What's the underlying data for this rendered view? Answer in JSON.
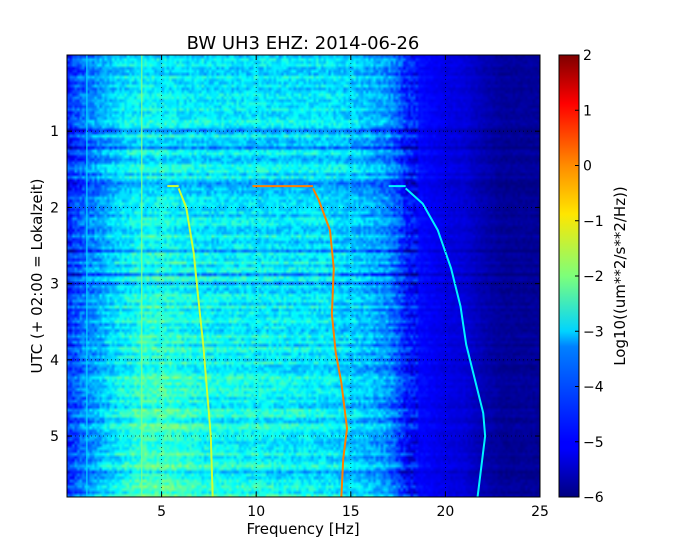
{
  "chart_data": {
    "type": "heatmap",
    "title": "BW UH3 EHZ: 2014-06-26",
    "xlabel": "Frequency [Hz]",
    "ylabel": "UTC (+ 02:00 = Lokalzeit)",
    "xlim": [
      0,
      25
    ],
    "ylim": [
      5.8,
      0
    ],
    "x_ticks": [
      {
        "value": 5,
        "label": "5"
      },
      {
        "value": 10,
        "label": "10"
      },
      {
        "value": 15,
        "label": "15"
      },
      {
        "value": 20,
        "label": "20"
      },
      {
        "value": 25,
        "label": "25"
      }
    ],
    "y_ticks": [
      {
        "value": 1,
        "label": "1"
      },
      {
        "value": 2,
        "label": "2"
      },
      {
        "value": 3,
        "label": "3"
      },
      {
        "value": 4,
        "label": "4"
      },
      {
        "value": 5,
        "label": "5"
      }
    ],
    "grid": true,
    "colormap": "jet",
    "colorbar": {
      "label": "Log10((um**2/s**2/Hz))",
      "range": [
        -6,
        2
      ],
      "ticks": [
        {
          "value": 2,
          "label": "2"
        },
        {
          "value": 1,
          "label": "1"
        },
        {
          "value": 0,
          "label": "0"
        },
        {
          "value": -1,
          "label": "−1"
        },
        {
          "value": -2,
          "label": "−2"
        },
        {
          "value": -3,
          "label": "−3"
        },
        {
          "value": -4,
          "label": "−4"
        },
        {
          "value": -5,
          "label": "−5"
        },
        {
          "value": -6,
          "label": "−6"
        }
      ]
    },
    "spectral_levels": {
      "x": [
        0,
        0.3,
        1,
        2,
        3,
        4,
        5,
        6,
        7,
        8,
        9,
        10,
        11,
        12,
        13,
        14,
        15,
        16,
        17,
        17.5,
        18,
        19,
        20,
        21,
        22,
        23,
        24,
        25
      ],
      "level_start": [
        -4.9,
        -4.6,
        -4.2,
        -3.7,
        -3.3,
        -3.2,
        -3.2,
        -3.3,
        -3.3,
        -3.3,
        -3.3,
        -3.3,
        -3.3,
        -3.3,
        -3.3,
        -3.3,
        -3.4,
        -3.6,
        -3.9,
        -4.3,
        -4.8,
        -5.0,
        -5.2,
        -5.3,
        -5.6,
        -5.8,
        -5.8,
        -5.8
      ],
      "level_end": [
        -4.6,
        -4.3,
        -3.8,
        -3.3,
        -2.8,
        -2.4,
        -2.3,
        -2.5,
        -2.7,
        -2.8,
        -2.8,
        -2.8,
        -2.9,
        -3.0,
        -3.0,
        -3.1,
        -3.3,
        -3.5,
        -3.8,
        -4.3,
        -4.9,
        -5.0,
        -5.2,
        -5.3,
        -5.6,
        -5.8,
        -5.8,
        -5.8
      ]
    },
    "series": [
      {
        "start_time": 1.72,
        "start_freq": 9.8,
        "level": 0,
        "points": [
          [
            13.0,
            1.75
          ],
          [
            13.3,
            1.9
          ],
          [
            13.9,
            2.3
          ],
          [
            14.1,
            2.8
          ],
          [
            14.0,
            3.4
          ],
          [
            14.2,
            3.9
          ],
          [
            14.5,
            4.3
          ],
          [
            14.8,
            4.9
          ],
          [
            14.6,
            5.3
          ],
          [
            14.5,
            5.8
          ]
        ]
      },
      {
        "start_time": 1.72,
        "start_freq": 17.0,
        "level": -3.1,
        "points": [
          [
            17.9,
            1.75
          ],
          [
            18.8,
            1.95
          ],
          [
            19.6,
            2.3
          ],
          [
            20.3,
            2.8
          ],
          [
            20.8,
            3.3
          ],
          [
            21.1,
            3.8
          ],
          [
            21.7,
            4.4
          ],
          [
            22.0,
            4.7
          ],
          [
            22.1,
            5.0
          ],
          [
            21.7,
            5.8
          ]
        ]
      },
      {
        "start_time": 1.72,
        "start_freq": 5.3,
        "level": -1.4,
        "points": [
          [
            5.9,
            1.75
          ],
          [
            6.3,
            2.0
          ],
          [
            6.7,
            2.6
          ],
          [
            6.9,
            3.1
          ],
          [
            7.2,
            3.8
          ],
          [
            7.4,
            4.4
          ],
          [
            7.6,
            5.0
          ],
          [
            7.7,
            5.8
          ]
        ]
      }
    ],
    "tone_lines": [
      {
        "x": 3.95,
        "level": -2.0
      },
      {
        "x": 1.05,
        "level": -3.3
      }
    ]
  }
}
